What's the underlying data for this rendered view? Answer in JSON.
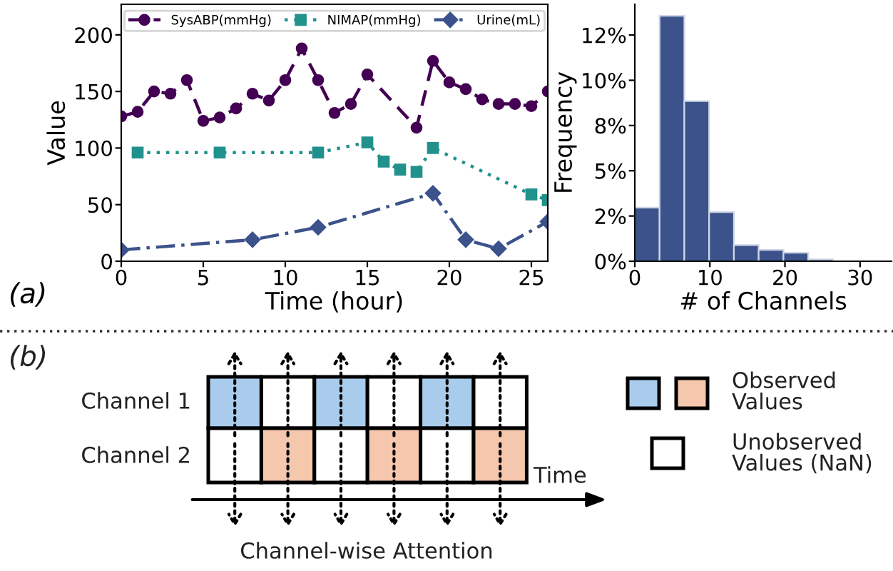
{
  "chart_data": [
    {
      "type": "line",
      "xlabel": "Time (hour)",
      "ylabel": "Value",
      "xlim": [
        0,
        26
      ],
      "ylim": [
        0,
        227
      ],
      "xticks": [
        0,
        5,
        10,
        15,
        20,
        25
      ],
      "yticks": [
        0,
        50,
        100,
        150,
        200
      ],
      "grid": false,
      "legend": "top",
      "annotations": [
        "(a)"
      ],
      "series": [
        {
          "name": "SysABP(mmHg)",
          "color": "#440154",
          "marker": "circle",
          "line_style": "dashed",
          "x": [
            0,
            1,
            2,
            3,
            4,
            5,
            6,
            7,
            8,
            9,
            10,
            11,
            12,
            13,
            14,
            15,
            18,
            19,
            20,
            21,
            22,
            23,
            24,
            25,
            26
          ],
          "values": [
            128,
            132,
            150,
            148,
            160,
            124,
            127,
            135,
            148,
            142,
            160,
            188,
            160,
            131,
            139,
            165,
            118,
            177,
            158,
            152,
            143,
            139,
            139,
            137,
            150
          ]
        },
        {
          "name": "NIMAP(mmHg)",
          "color": "#21918c",
          "marker": "square",
          "line_style": "dotted",
          "x": [
            1,
            6,
            12,
            15,
            16,
            17,
            18,
            19,
            25,
            26
          ],
          "values": [
            96,
            96,
            96,
            105,
            88,
            81,
            79,
            100,
            59,
            54
          ]
        },
        {
          "name": "Urine(mL)",
          "color": "#3b528b",
          "marker": "diamond",
          "line_style": "dashdot",
          "x": [
            0,
            8,
            12,
            19,
            21,
            23,
            26
          ],
          "values": [
            10,
            19,
            30,
            60,
            19,
            11,
            35
          ]
        }
      ]
    },
    {
      "type": "histogram",
      "xlabel": "# of Channels",
      "ylabel": "Frequency",
      "color": "#3b528b",
      "bins": [
        0,
        3.3,
        6.6,
        9.9,
        13.2,
        16.5,
        19.8,
        23.1,
        26.4,
        29.7,
        33
      ],
      "values": [
        2.96,
        13.56,
        8.85,
        2.72,
        0.89,
        0.63,
        0.47,
        0.1,
        null,
        null
      ],
      "xlim": [
        0,
        34.2
      ],
      "ylim": [
        0,
        14.2
      ],
      "xticks": [
        0,
        10,
        20,
        30
      ],
      "yticks": [
        {
          "value": 0,
          "label": "0%"
        },
        {
          "value": 2.5,
          "label": "2%"
        },
        {
          "value": 5,
          "label": "5%"
        },
        {
          "value": 7.5,
          "label": "8%"
        },
        {
          "value": 10,
          "label": "10%"
        },
        {
          "value": 12.5,
          "label": "12%"
        }
      ],
      "grid": false
    },
    {
      "type": "other",
      "annotations": [
        "(b)",
        "Channel 1",
        "Channel 2",
        "Time",
        "Observed\nValues",
        "Unobserved\nValues (NaN)",
        "Channel-wise Attention"
      ]
    }
  ]
}
